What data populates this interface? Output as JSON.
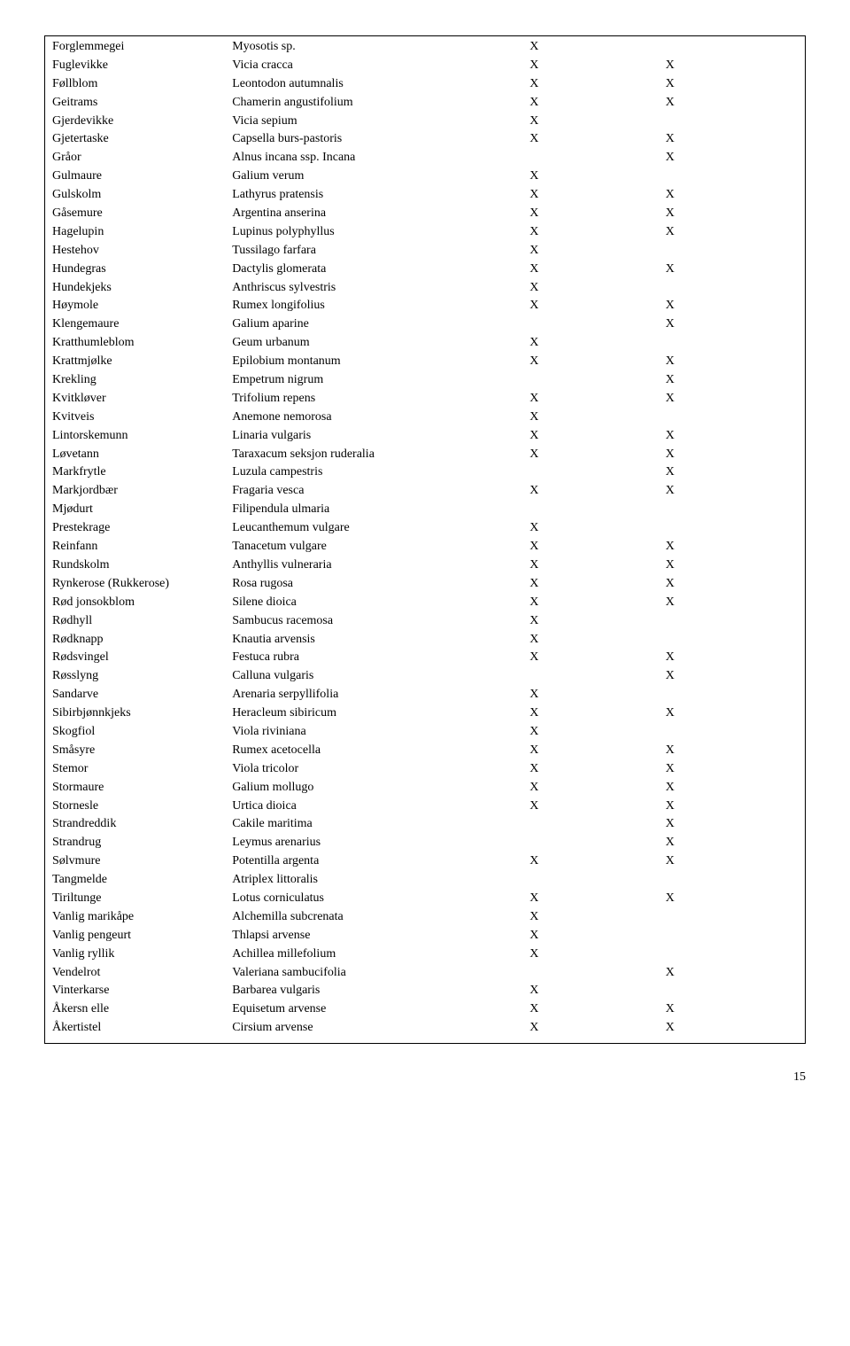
{
  "page_number": "15",
  "rows": [
    {
      "n": "Forglemmegei",
      "l": "Myosotis sp.",
      "x1": "X",
      "x2": ""
    },
    {
      "n": "Fuglevikke",
      "l": "Vicia cracca",
      "x1": "X",
      "x2": "X"
    },
    {
      "n": "Føllblom",
      "l": "Leontodon autumnalis",
      "x1": "X",
      "x2": "X"
    },
    {
      "n": "Geitrams",
      "l": "Chamerin angustifolium",
      "x1": "X",
      "x2": "X"
    },
    {
      "n": "Gjerdevikke",
      "l": "Vicia sepium",
      "x1": "X",
      "x2": ""
    },
    {
      "n": "Gjetertaske",
      "l": "Capsella burs-pastoris",
      "x1": "X",
      "x2": "X"
    },
    {
      "n": "Gråor",
      "l": "Alnus incana ssp. Incana",
      "x1": "",
      "x2": "X"
    },
    {
      "n": "Gulmaure",
      "l": "Galium verum",
      "x1": "X",
      "x2": ""
    },
    {
      "n": "Gulskolm",
      "l": "Lathyrus pratensis",
      "x1": "X",
      "x2": "X"
    },
    {
      "n": "Gåsemure",
      "l": "Argentina anserina",
      "x1": "X",
      "x2": "X"
    },
    {
      "n": "Hagelupin",
      "l": "Lupinus polyphyllus",
      "x1": "X",
      "x2": "X"
    },
    {
      "n": "Hestehov",
      "l": "Tussilago farfara",
      "x1": "X",
      "x2": ""
    },
    {
      "n": "Hundegras",
      "l": "Dactylis glomerata",
      "x1": "X",
      "x2": "X"
    },
    {
      "n": "Hundekjeks",
      "l": "Anthriscus sylvestris",
      "x1": "X",
      "x2": ""
    },
    {
      "n": "Høymole",
      "l": "Rumex longifolius",
      "x1": "X",
      "x2": "X"
    },
    {
      "n": "Klengemaure",
      "l": "Galium aparine",
      "x1": "",
      "x2": "X"
    },
    {
      "n": "Kratthumleblom",
      "l": "Geum urbanum",
      "x1": "X",
      "x2": ""
    },
    {
      "n": "Krattmjølke",
      "l": "Epilobium montanum",
      "x1": "X",
      "x2": "X"
    },
    {
      "n": "Krekling",
      "l": "Empetrum nigrum",
      "x1": "",
      "x2": "X"
    },
    {
      "n": "Kvitkløver",
      "l": "Trifolium repens",
      "x1": "X",
      "x2": "X"
    },
    {
      "n": "Kvitveis",
      "l": "Anemone nemorosa",
      "x1": "X",
      "x2": ""
    },
    {
      "n": "Lintorskemunn",
      "l": "Linaria vulgaris",
      "x1": "X",
      "x2": "X"
    },
    {
      "n": "Løvetann",
      "l": "Taraxacum seksjon ruderalia",
      "x1": "X",
      "x2": "X"
    },
    {
      "n": "Markfrytle",
      "l": "Luzula campestris",
      "x1": "",
      "x2": "X"
    },
    {
      "n": "Markjordbær",
      "l": "Fragaria vesca",
      "x1": "X",
      "x2": "X"
    },
    {
      "n": "Mjødurt",
      "l": "Filipendula ulmaria",
      "x1": "",
      "x2": ""
    },
    {
      "n": "Prestekrage",
      "l": "Leucanthemum vulgare",
      "x1": "X",
      "x2": ""
    },
    {
      "n": "Reinfann",
      "l": "Tanacetum vulgare",
      "x1": "X",
      "x2": "X"
    },
    {
      "n": "Rundskolm",
      "l": "Anthyllis vulneraria",
      "x1": "X",
      "x2": "X"
    },
    {
      "n": "Rynkerose (Rukkerose)",
      "l": "Rosa rugosa",
      "x1": "X",
      "x2": "X"
    },
    {
      "n": "Rød jonsokblom",
      "l": "Silene dioica",
      "x1": "X",
      "x2": "X"
    },
    {
      "n": "Rødhyll",
      "l": "Sambucus racemosa",
      "x1": "X",
      "x2": ""
    },
    {
      "n": "Rødknapp",
      "l": "Knautia arvensis",
      "x1": "X",
      "x2": ""
    },
    {
      "n": "Rødsvingel",
      "l": "Festuca rubra",
      "x1": "X",
      "x2": "X"
    },
    {
      "n": "Røsslyng",
      "l": "Calluna vulgaris",
      "x1": "",
      "x2": "X"
    },
    {
      "n": "Sandarve",
      "l": "Arenaria serpyllifolia",
      "x1": "X",
      "x2": ""
    },
    {
      "n": "Sibirbjønnkjeks",
      "l": "Heracleum sibiricum",
      "x1": "X",
      "x2": "X"
    },
    {
      "n": "Skogfiol",
      "l": "Viola riviniana",
      "x1": "X",
      "x2": ""
    },
    {
      "n": "Småsyre",
      "l": "Rumex acetocella",
      "x1": "X",
      "x2": "X"
    },
    {
      "n": "Stemor",
      "l": "Viola tricolor",
      "x1": "X",
      "x2": "X"
    },
    {
      "n": "Stormaure",
      "l": "Galium mollugo",
      "x1": "X",
      "x2": "X"
    },
    {
      "n": "Stornesle",
      "l": "Urtica dioica",
      "x1": "X",
      "x2": "X"
    },
    {
      "n": "Strandreddik",
      "l": "Cakile maritima",
      "x1": "",
      "x2": "X"
    },
    {
      "n": "Strandrug",
      "l": "Leymus arenarius",
      "x1": "",
      "x2": "X"
    },
    {
      "n": "Sølvmure",
      "l": "Potentilla argenta",
      "x1": "X",
      "x2": "X"
    },
    {
      "n": "Tangmelde",
      "l": "Atriplex littoralis",
      "x1": "",
      "x2": ""
    },
    {
      "n": "Tiriltunge",
      "l": "Lotus corniculatus",
      "x1": "X",
      "x2": "X"
    },
    {
      "n": "Vanlig marikåpe",
      "l": "Alchemilla subcrenata",
      "x1": "X",
      "x2": ""
    },
    {
      "n": "Vanlig pengeurt",
      "l": "Thlapsi arvense",
      "x1": "X",
      "x2": ""
    },
    {
      "n": "Vanlig ryllik",
      "l": "Achillea millefolium",
      "x1": "X",
      "x2": ""
    },
    {
      "n": "Vendelrot",
      "l": "Valeriana sambucifolia",
      "x1": "",
      "x2": "X"
    },
    {
      "n": "Vinterkarse",
      "l": "Barbarea vulgaris",
      "x1": "X",
      "x2": ""
    },
    {
      "n": "Åkersn elle",
      "l": "Equisetum arvense",
      "x1": "X",
      "x2": "X"
    },
    {
      "n": "Åkertistel",
      "l": "Cirsium arvense",
      "x1": "X",
      "x2": "X"
    }
  ]
}
